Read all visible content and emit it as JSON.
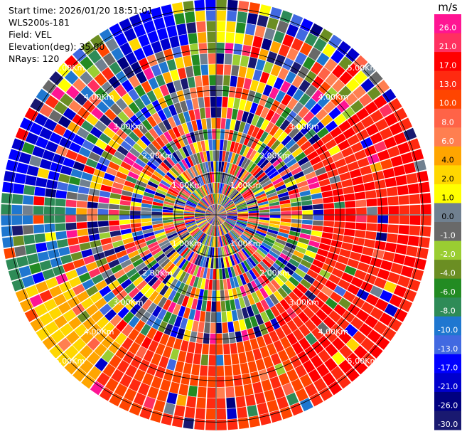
{
  "header": {
    "start_time": "Start time: 2026/01/20 18:51:01",
    "instrument": "WLS200s-181",
    "field": "Field: VEL",
    "elevation": "Elevation(deg): 35.00",
    "nrays": "NRays: 120"
  },
  "chart_data": {
    "type": "heatmap",
    "projection": "polar-ppi",
    "n_rays": 120,
    "n_gates": 20,
    "range_rings_km": [
      "1.00Km",
      "2.00Km",
      "3.00Km",
      "4.00Km",
      "5.00Km"
    ],
    "range_ring_label_bearings_deg": [
      45,
      135,
      225,
      315
    ],
    "colorbar": {
      "unit": "m/s",
      "tick_labels": [
        "26.0",
        "21.0",
        "17.0",
        "13.0",
        "10.0",
        "8.0",
        "6.0",
        "4.0",
        "2.0",
        "1.0",
        "0.0",
        "-1.0",
        "-2.0",
        "-4.0",
        "-6.0",
        "-8.0",
        "-10.0",
        "-13.0",
        "-17.0",
        "-21.0",
        "-26.0",
        "-30.0"
      ],
      "colors": [
        "#ff1493",
        "#ff3060",
        "#ff0000",
        "#ff2a10",
        "#ff4500",
        "#ff6347",
        "#ff7f50",
        "#ffa500",
        "#ffd700",
        "#ffff00",
        "#708090",
        "#696969",
        "#9acd32",
        "#6b8e23",
        "#228b22",
        "#2e8b57",
        "#1f77d0",
        "#4169e1",
        "#0000ff",
        "#0000cd",
        "#000080",
        "#191970"
      ]
    },
    "velocity_field_note_free": true,
    "dominant_sectors": [
      {
        "bearing_from_deg": 55,
        "bearing_to_deg": 150,
        "outer_range_from_gate": 10,
        "value": 17.0
      },
      {
        "bearing_from_deg": 150,
        "bearing_to_deg": 215,
        "outer_range_from_gate": 12,
        "value": 13.0
      },
      {
        "bearing_from_deg": 215,
        "bearing_to_deg": 250,
        "outer_range_from_gate": 14,
        "value": 4.0
      },
      {
        "bearing_from_deg": 250,
        "bearing_to_deg": 275,
        "outer_range_from_gate": 14,
        "value": -8.0
      },
      {
        "bearing_from_deg": 275,
        "bearing_to_deg": 300,
        "outer_range_from_gate": 14,
        "value": -17.0
      },
      {
        "bearing_from_deg": 330,
        "bearing_to_deg": 350,
        "outer_range_from_gate": 16,
        "value": -17.0
      }
    ]
  }
}
